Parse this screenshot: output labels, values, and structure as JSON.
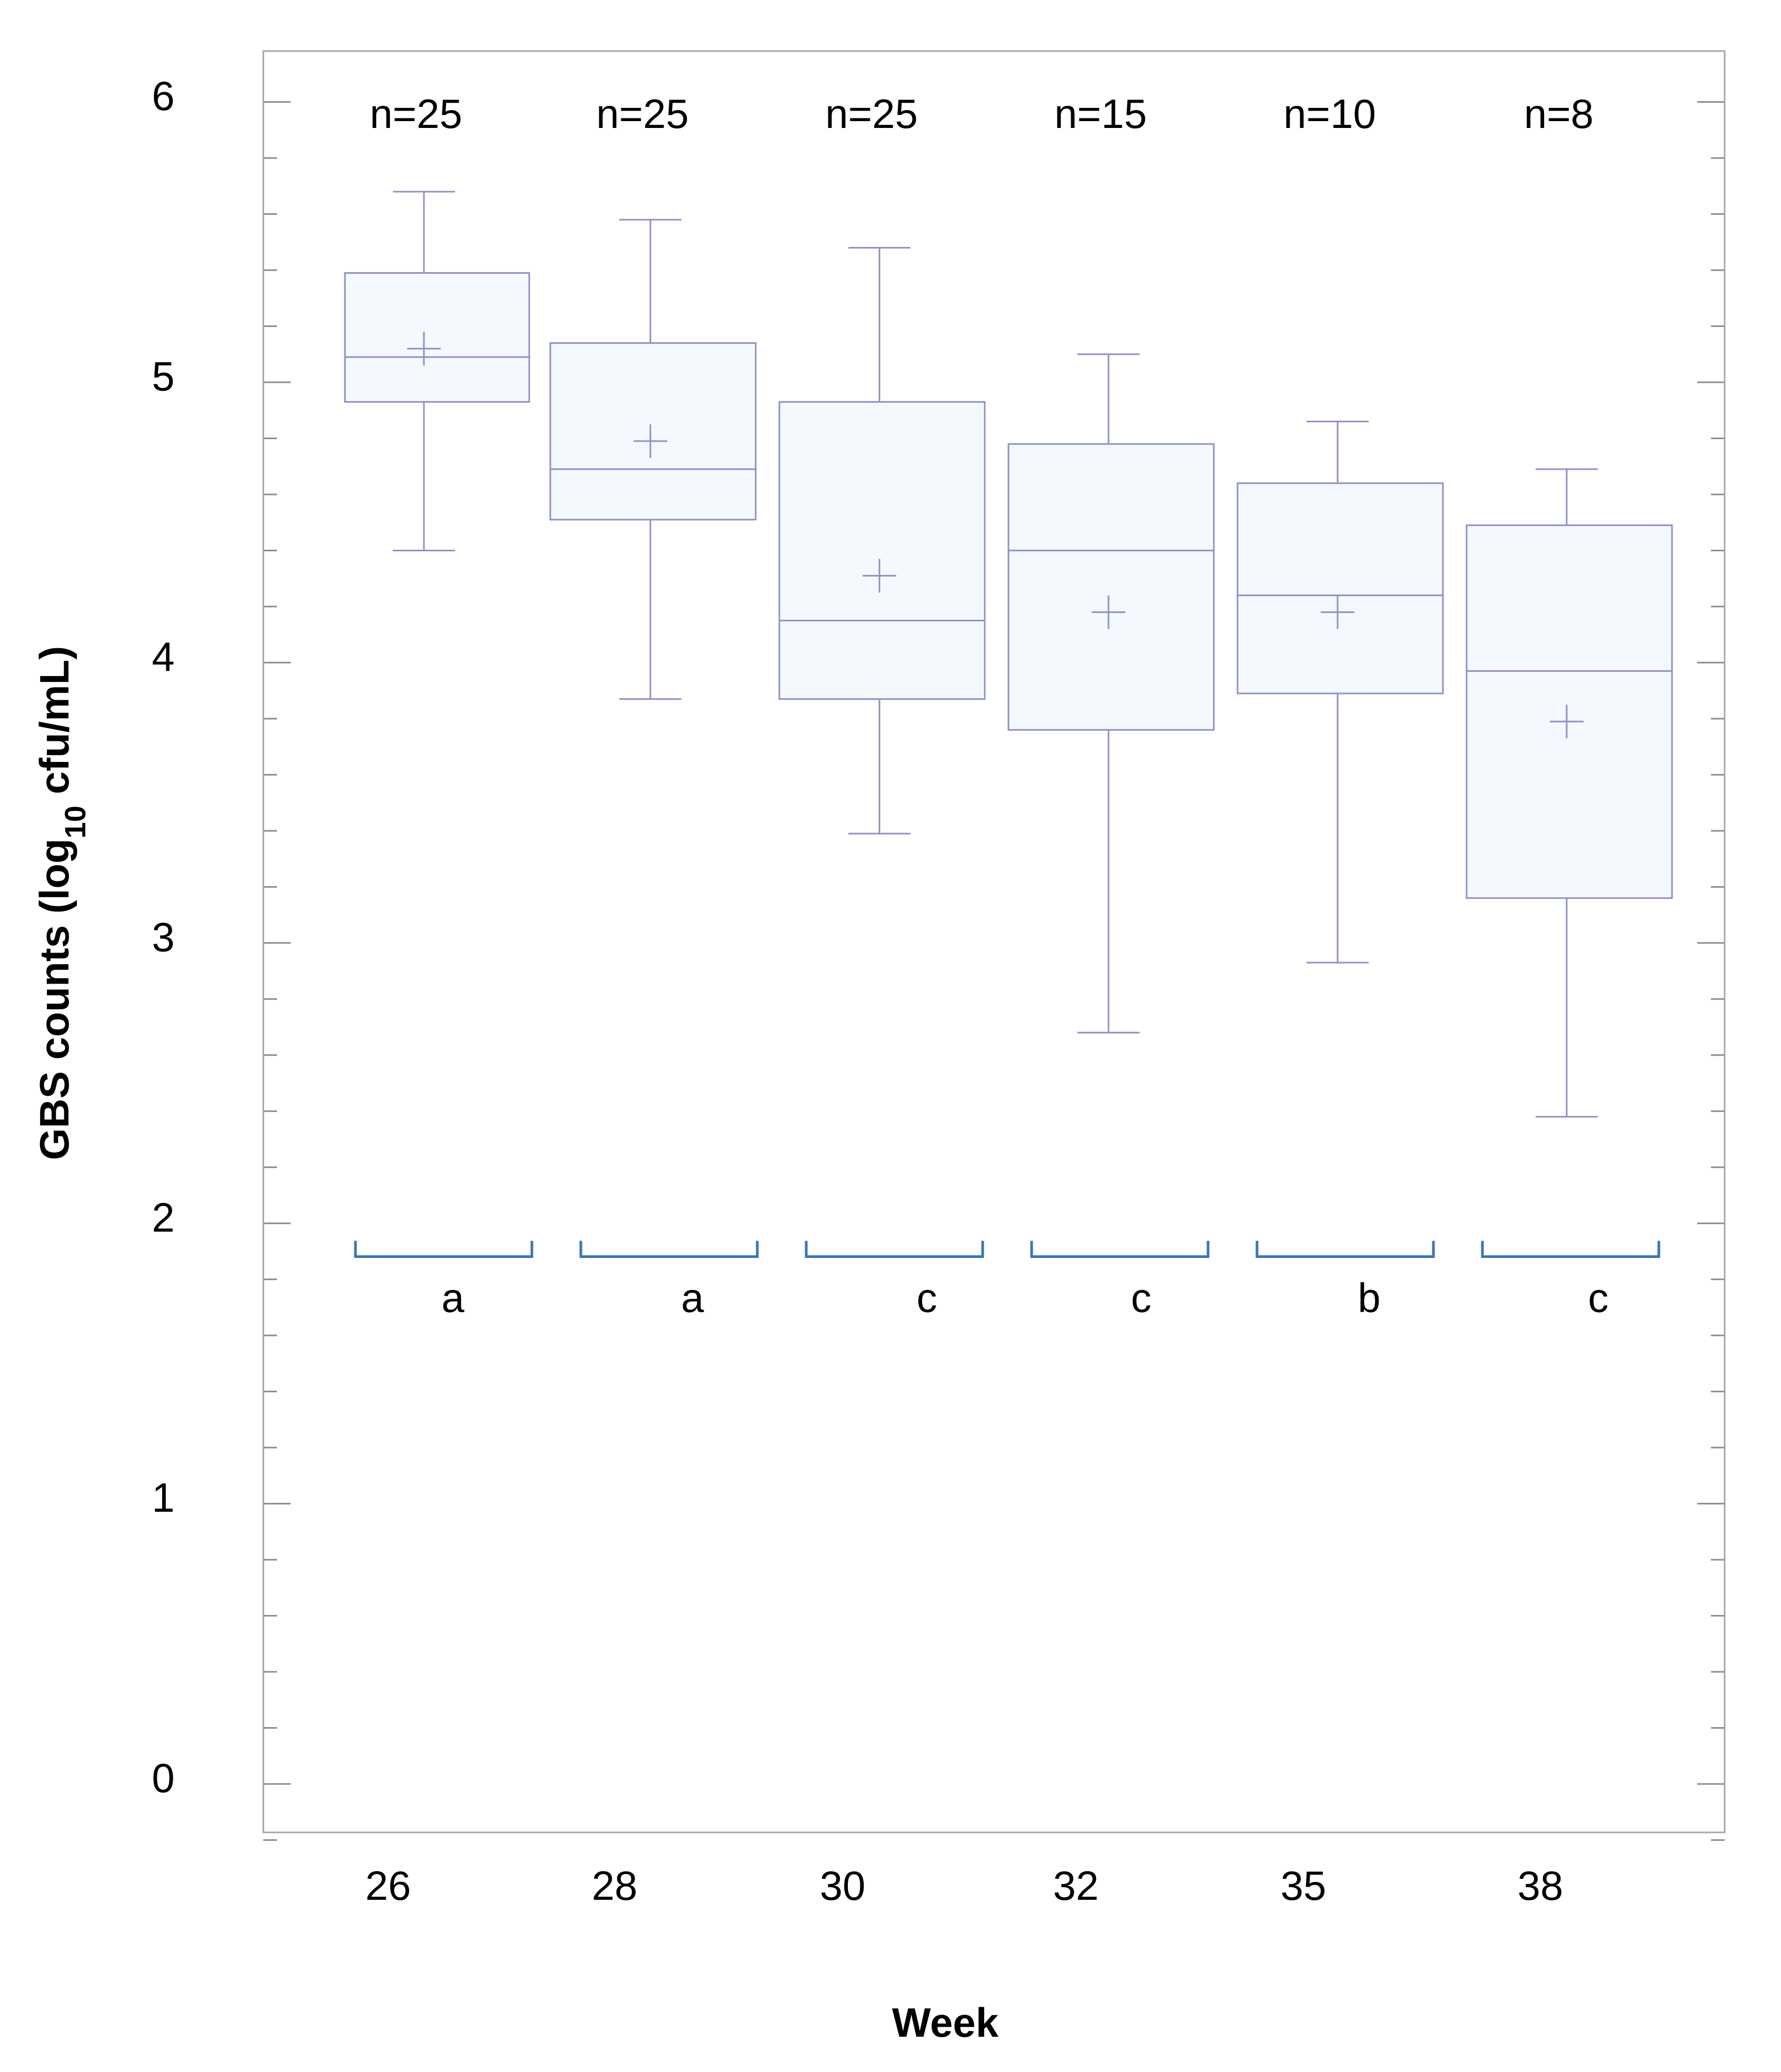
{
  "chart_data": {
    "type": "box",
    "title": "",
    "xlabel": "Week",
    "ylabel": "GBS counts (log10 cfu/mL)",
    "ylabel_parts": {
      "prefix": "GBS counts (log",
      "subscript": "10",
      "suffix": " cfu/mL)"
    },
    "ylim": [
      -0.2,
      6.15
    ],
    "y_ticks": [
      0,
      1,
      2,
      3,
      4,
      5,
      6
    ],
    "y_tick_labels": [
      "0",
      "1",
      "2",
      "3",
      "4",
      "5",
      "6"
    ],
    "y_minor_step": 0.2,
    "categories": [
      "26",
      "28",
      "30",
      "32",
      "35",
      "38"
    ],
    "n_labels": [
      "n=25",
      "n=25",
      "n=25",
      "n=15",
      "n=10",
      "n=8"
    ],
    "group_letters": [
      "a",
      "a",
      "c",
      "c",
      "b",
      "c"
    ],
    "bracket_y": 1.9,
    "boxes": [
      {
        "min": 4.4,
        "q1": 4.93,
        "median": 5.09,
        "q3": 5.39,
        "max": 5.68,
        "mean": 5.12
      },
      {
        "min": 3.87,
        "q1": 4.51,
        "median": 4.69,
        "q3": 5.14,
        "max": 5.58,
        "mean": 4.79
      },
      {
        "min": 3.39,
        "q1": 3.87,
        "median": 4.15,
        "q3": 4.93,
        "max": 5.48,
        "mean": 4.31
      },
      {
        "min": 2.68,
        "q1": 3.76,
        "median": 4.4,
        "q3": 4.78,
        "max": 5.1,
        "mean": 4.18
      },
      {
        "min": 2.93,
        "q1": 3.89,
        "median": 4.24,
        "q3": 4.64,
        "max": 4.86,
        "mean": 4.18
      },
      {
        "min": 2.38,
        "q1": 3.16,
        "median": 3.97,
        "q3": 4.49,
        "max": 4.69,
        "mean": 3.79
      }
    ],
    "colors": {
      "box_stroke": "#8f8fc7",
      "box_fill": "#f4f9fd",
      "bracket": "#3a75b8",
      "frame": "#a6a6a6"
    }
  }
}
